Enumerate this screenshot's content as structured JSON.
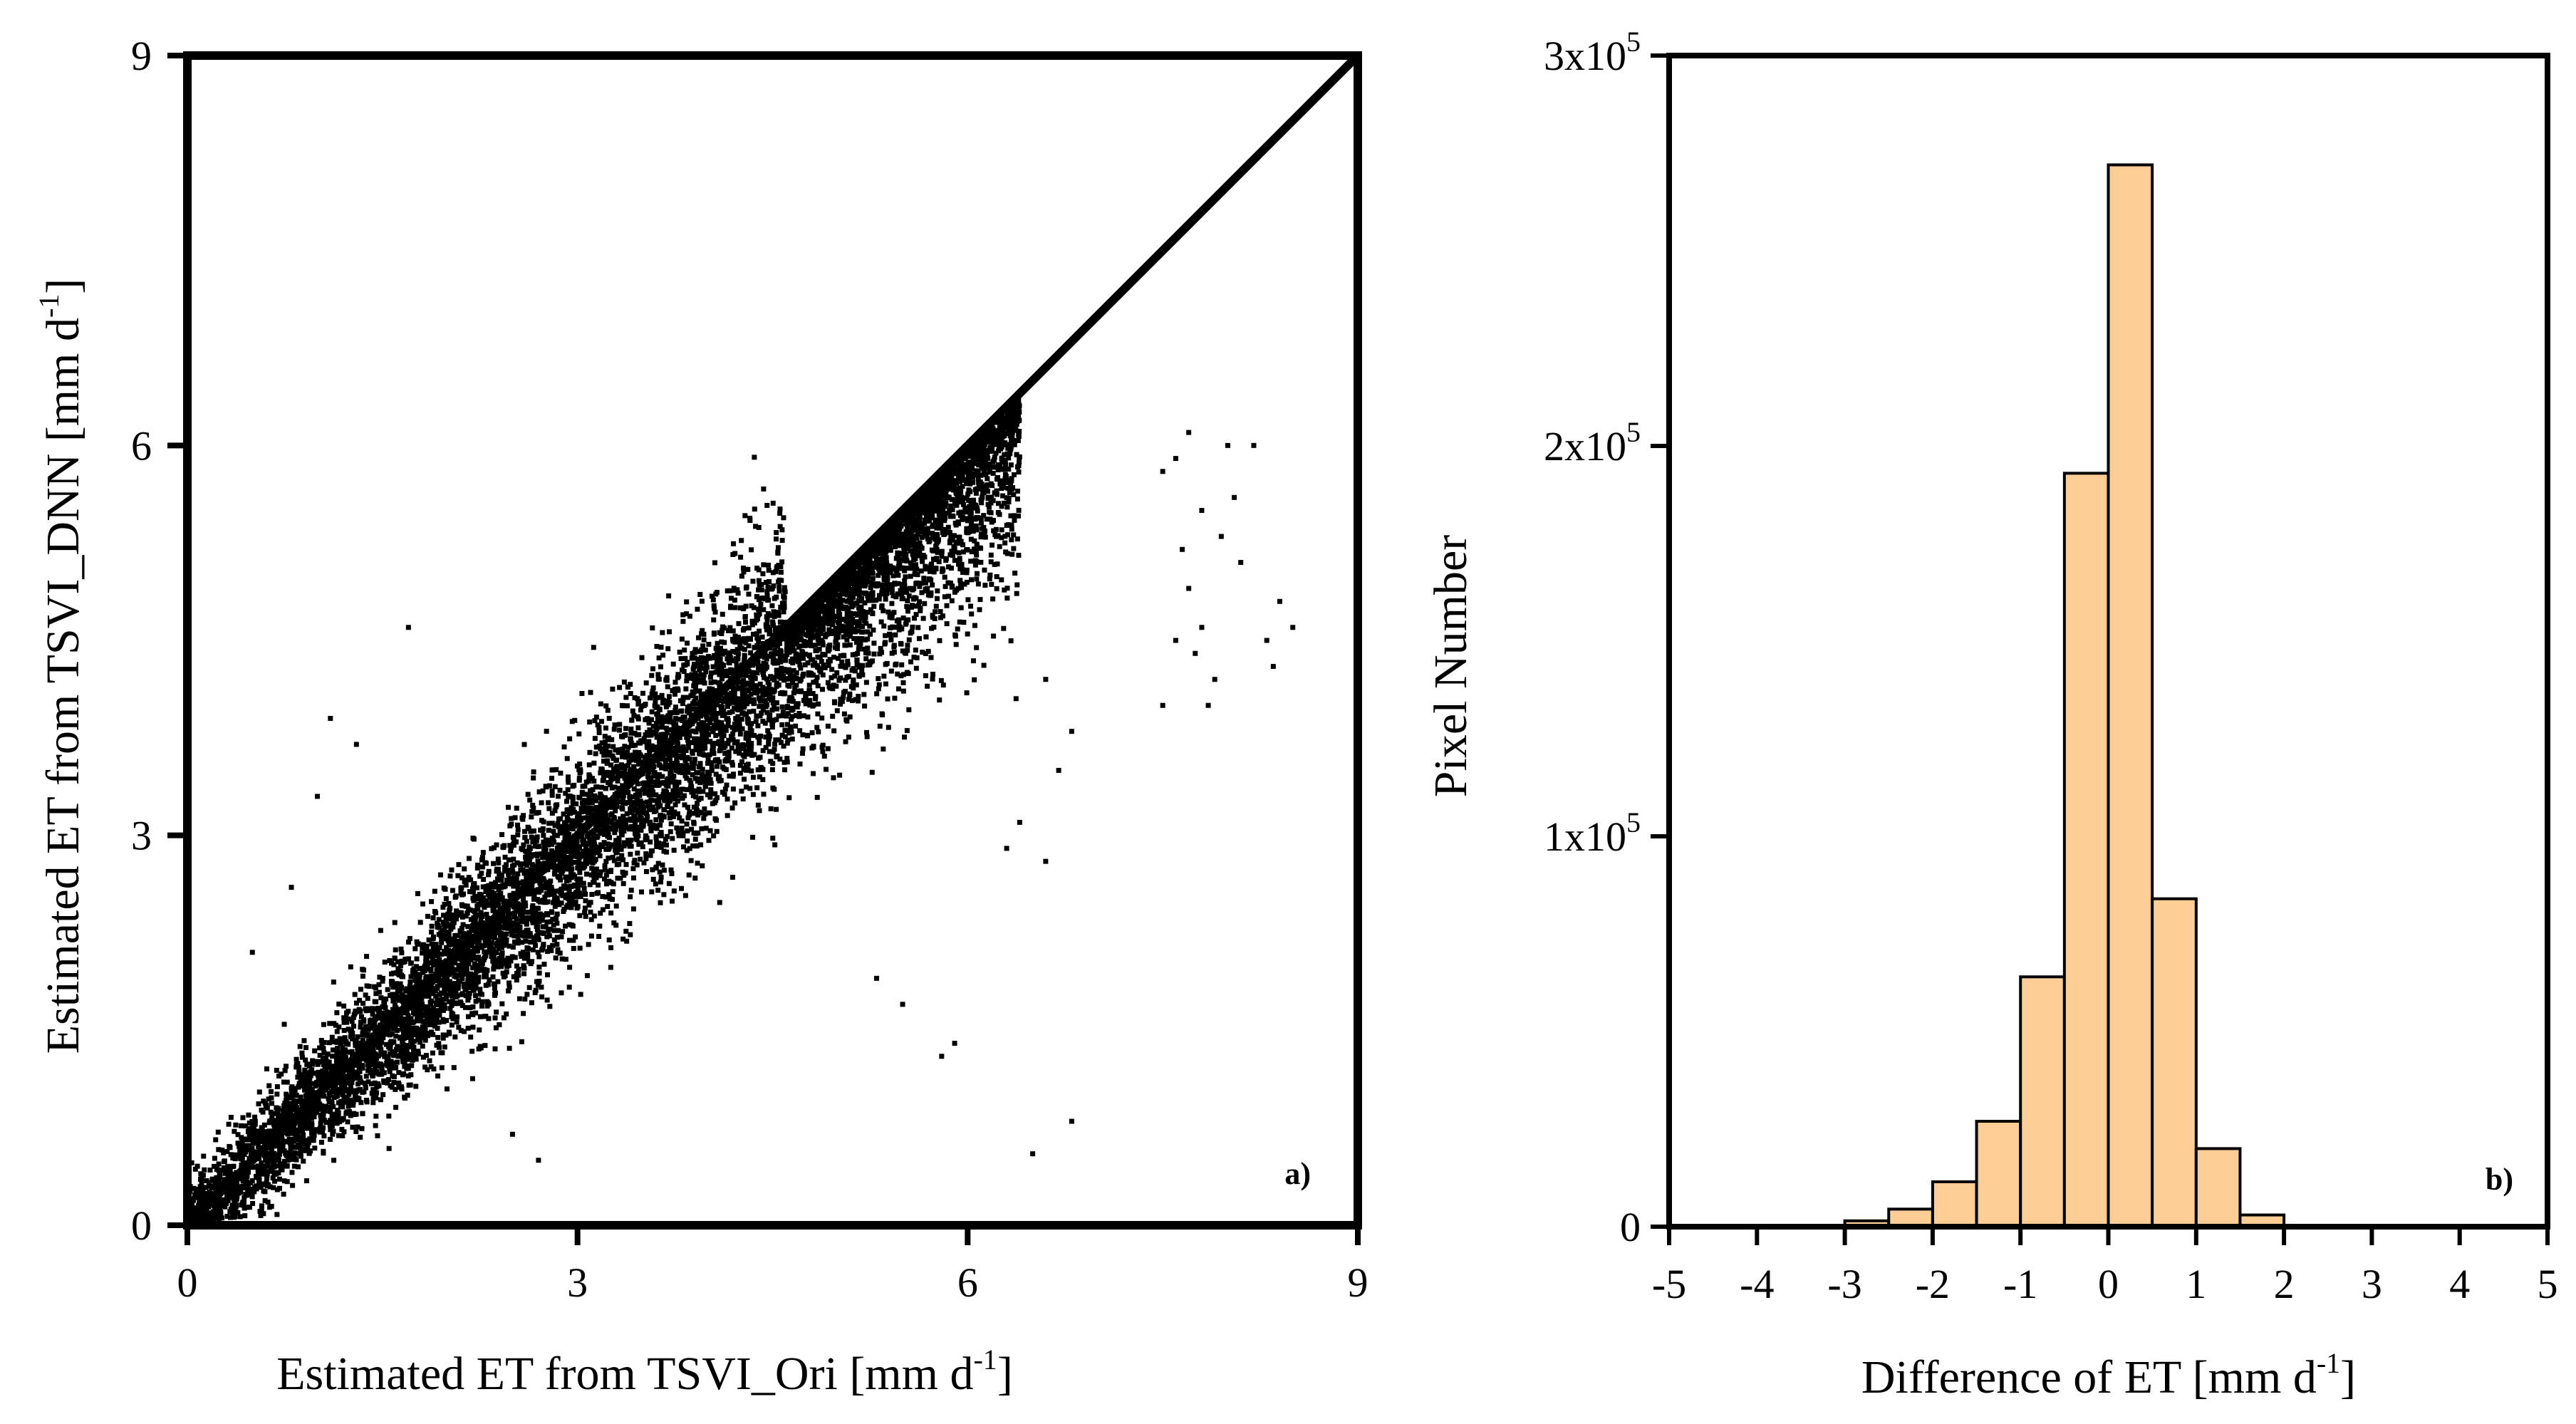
{
  "chart_data": [
    {
      "type": "scatter",
      "xlabel": "Estimated ET from TSVI_Ori [mm d",
      "xlabel_sup": "-1",
      "xlabel_end": "]",
      "ylabel": "Estimated ET from TSVI_DNN [mm d",
      "ylabel_sup": "-1",
      "ylabel_end": "]",
      "xlim": [
        0,
        9
      ],
      "ylim": [
        0,
        9
      ],
      "xticks": [
        "0",
        "3",
        "6",
        "9"
      ],
      "yticks": [
        "0",
        "3",
        "6",
        "9"
      ],
      "reference_line": {
        "from": [
          0,
          0
        ],
        "to": [
          9,
          9
        ]
      },
      "panel_label": "a)",
      "point_color": "#000000",
      "points_description_cluster": {
        "n_approx": 9000,
        "trend": "y ≈ 0.97x, dense band along 1:1 line from 0 to ~6.5",
        "spread_sd": 0.45
      },
      "outlier_points": [
        [
          0.5,
          2.1
        ],
        [
          0.8,
          2.6
        ],
        [
          1.0,
          3.3
        ],
        [
          1.1,
          3.9
        ],
        [
          1.3,
          3.7
        ],
        [
          1.7,
          4.6
        ],
        [
          0.6,
          0.4
        ],
        [
          2.5,
          0.7
        ],
        [
          2.7,
          0.5
        ],
        [
          5.3,
          1.9
        ],
        [
          5.5,
          1.7
        ],
        [
          5.9,
          1.4
        ],
        [
          5.8,
          1.3
        ],
        [
          6.5,
          0.55
        ],
        [
          6.8,
          0.8
        ],
        [
          7.6,
          5.9
        ],
        [
          7.7,
          6.1
        ],
        [
          7.8,
          5.5
        ],
        [
          7.5,
          5.8
        ],
        [
          7.65,
          5.2
        ],
        [
          7.7,
          4.9
        ],
        [
          7.8,
          4.6
        ],
        [
          7.75,
          4.4
        ],
        [
          7.9,
          4.2
        ],
        [
          7.6,
          4.5
        ],
        [
          7.85,
          4.0
        ],
        [
          8.0,
          6.0
        ],
        [
          8.2,
          6.0
        ],
        [
          8.05,
          5.6
        ],
        [
          7.95,
          5.3
        ],
        [
          8.1,
          5.1
        ],
        [
          8.4,
          4.8
        ],
        [
          8.5,
          4.6
        ],
        [
          8.3,
          4.5
        ],
        [
          8.35,
          4.3
        ],
        [
          7.5,
          4.0
        ],
        [
          6.6,
          4.2
        ],
        [
          6.8,
          3.8
        ],
        [
          6.7,
          3.5
        ],
        [
          6.4,
          3.1
        ],
        [
          6.6,
          2.8
        ],
        [
          6.3,
          2.9
        ]
      ]
    },
    {
      "type": "bar",
      "xlabel": "Difference of ET [mm d",
      "xlabel_sup": "-1",
      "xlabel_end": "]",
      "ylabel": "Pixel Number",
      "xlim": [
        -5,
        5
      ],
      "ylim": [
        0,
        300000
      ],
      "xticks": [
        "-5",
        "-4",
        "-3",
        "-2",
        "-1",
        "0",
        "1",
        "2",
        "3",
        "4",
        "5"
      ],
      "yticks": [
        {
          "base": "0",
          "sup": ""
        },
        {
          "base": "1x10",
          "sup": "5"
        },
        {
          "base": "2x10",
          "sup": "5"
        },
        {
          "base": "3x10",
          "sup": "5"
        }
      ],
      "bin_edges": [
        -3.0,
        -2.5,
        -2.0,
        -1.5,
        -1.0,
        -0.5,
        0.0,
        0.5,
        1.0,
        1.5,
        2.0
      ],
      "values": [
        1500,
        4500,
        11500,
        27000,
        64000,
        193000,
        272000,
        84000,
        20000,
        3000
      ],
      "bar_color": "#fdcd96",
      "panel_label": "b)"
    }
  ]
}
